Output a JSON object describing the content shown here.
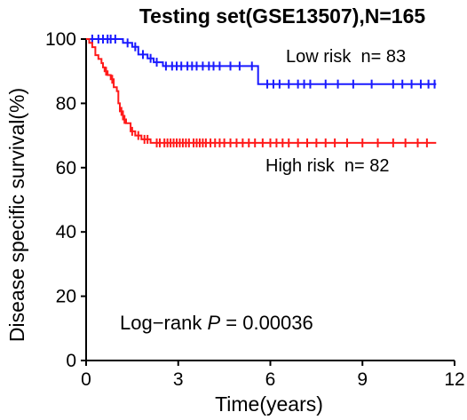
{
  "chart_data": {
    "type": "line",
    "title": "Testing set(GSE13507),N=165",
    "xlabel": "Time(years)",
    "ylabel": "Disease specific survival(%)",
    "xlim": [
      0,
      12
    ],
    "ylim": [
      0,
      100
    ],
    "x_ticks": [
      "0",
      "3",
      "6",
      "9",
      "12"
    ],
    "y_ticks": [
      "0",
      "20",
      "40",
      "60",
      "80",
      "100"
    ],
    "grid": false,
    "legend_position": "right, next to each curve",
    "series": [
      {
        "name": "Low risk  n= 83",
        "color": "#1a1aff",
        "steps": [
          [
            0,
            100
          ],
          [
            1.2,
            98.8
          ],
          [
            1.5,
            97.6
          ],
          [
            1.7,
            95.2
          ],
          [
            2.0,
            94.0
          ],
          [
            2.2,
            92.8
          ],
          [
            2.5,
            91.6
          ],
          [
            5.6,
            86.0
          ],
          [
            11.4,
            86.0
          ]
        ],
        "censor_x": [
          0.2,
          0.4,
          0.55,
          0.7,
          0.8,
          0.95,
          1.35,
          1.6,
          1.85,
          2.1,
          2.3,
          2.6,
          2.8,
          2.95,
          3.1,
          3.3,
          3.45,
          3.6,
          3.8,
          4.0,
          4.15,
          4.35,
          4.7,
          5.0,
          5.4,
          5.9,
          6.1,
          6.3,
          6.6,
          6.9,
          7.1,
          7.3,
          7.8,
          8.2,
          8.7,
          9.3,
          10.0,
          10.3,
          10.6,
          10.9,
          11.15,
          11.35
        ]
      },
      {
        "name": "High risk  n= 82",
        "color": "#ff1a1a",
        "steps": [
          [
            0,
            100
          ],
          [
            0.1,
            98.8
          ],
          [
            0.2,
            97.5
          ],
          [
            0.3,
            95.0
          ],
          [
            0.4,
            93.8
          ],
          [
            0.5,
            92.5
          ],
          [
            0.55,
            91.2
          ],
          [
            0.6,
            90.0
          ],
          [
            0.7,
            88.8
          ],
          [
            0.8,
            87.5
          ],
          [
            0.9,
            85.0
          ],
          [
            1.0,
            83.8
          ],
          [
            1.05,
            80.0
          ],
          [
            1.1,
            77.5
          ],
          [
            1.2,
            75.0
          ],
          [
            1.3,
            73.8
          ],
          [
            1.45,
            71.3
          ],
          [
            1.6,
            70.0
          ],
          [
            1.8,
            68.8
          ],
          [
            2.1,
            67.7
          ],
          [
            11.4,
            67.7
          ]
        ],
        "censor_x": [
          0.65,
          0.85,
          1.15,
          1.25,
          1.5,
          1.7,
          1.9,
          2.0,
          2.3,
          2.4,
          2.55,
          2.65,
          2.75,
          2.85,
          2.95,
          3.05,
          3.15,
          3.25,
          3.35,
          3.5,
          3.6,
          3.7,
          3.8,
          3.9,
          4.05,
          4.2,
          4.35,
          4.5,
          4.7,
          4.9,
          5.1,
          5.3,
          5.5,
          5.75,
          6.0,
          6.2,
          6.4,
          6.6,
          6.9,
          7.2,
          7.5,
          7.8,
          8.1,
          8.5,
          9.0,
          9.5,
          10.0,
          10.4,
          10.8,
          11.1
        ]
      }
    ],
    "annotations": {
      "pvalue_prefix": "Log−rank ",
      "pvalue_symbol": "P",
      "pvalue_value": " = 0.00036"
    }
  }
}
